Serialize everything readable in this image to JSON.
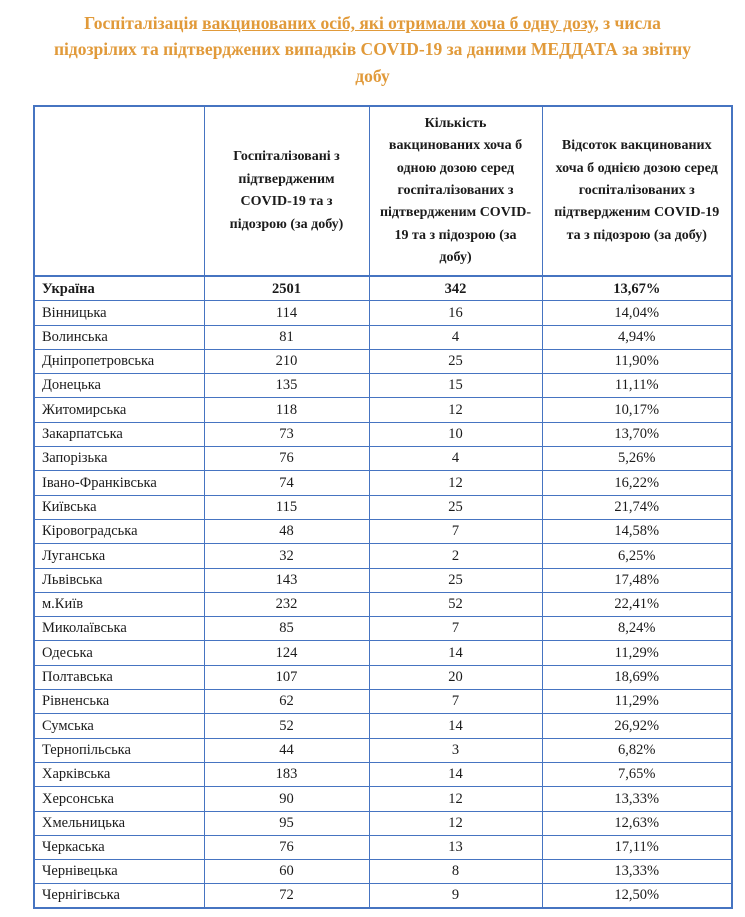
{
  "colors": {
    "title": "#E19A3A",
    "border": "#4674C1",
    "text": "#1b1b1b"
  },
  "title": {
    "prefix": "Госпіталізація ",
    "underlined": "вакцинованих осіб, які отримали хоча б одну дозу,",
    "suffix": " з числа підозрілих та підтверджених випадків COVID-19 за даними МЕДДАТА за звітну добу"
  },
  "table": {
    "headers": [
      "",
      "Госпіталізовані з підтвердженим COVID-19 та з підозрою (за добу)",
      "Кількість вакцинованих хоча б одною дозою серед госпіталізованих з підтвердженим COVID-19 та з підозрою (за добу)",
      "Відсоток вакцинованих хоча б однією дозою серед госпіталізованих з підтвердженим COVID-19 та з підозрою (за добу)"
    ],
    "rows": [
      {
        "region": "Україна",
        "hospitalized": "2501",
        "vaccinated": "342",
        "percent": "13,67%",
        "bold": true
      },
      {
        "region": "Вінницька",
        "hospitalized": "114",
        "vaccinated": "16",
        "percent": "14,04%",
        "bold": false
      },
      {
        "region": "Волинська",
        "hospitalized": "81",
        "vaccinated": "4",
        "percent": "4,94%",
        "bold": false
      },
      {
        "region": "Дніпропетровська",
        "hospitalized": "210",
        "vaccinated": "25",
        "percent": "11,90%",
        "bold": false
      },
      {
        "region": "Донецька",
        "hospitalized": "135",
        "vaccinated": "15",
        "percent": "11,11%",
        "bold": false
      },
      {
        "region": "Житомирська",
        "hospitalized": "118",
        "vaccinated": "12",
        "percent": "10,17%",
        "bold": false
      },
      {
        "region": "Закарпатська",
        "hospitalized": "73",
        "vaccinated": "10",
        "percent": "13,70%",
        "bold": false
      },
      {
        "region": "Запорізька",
        "hospitalized": "76",
        "vaccinated": "4",
        "percent": "5,26%",
        "bold": false
      },
      {
        "region": "Івано-Франківська",
        "hospitalized": "74",
        "vaccinated": "12",
        "percent": "16,22%",
        "bold": false
      },
      {
        "region": "Київська",
        "hospitalized": "115",
        "vaccinated": "25",
        "percent": "21,74%",
        "bold": false
      },
      {
        "region": "Кіровоградська",
        "hospitalized": "48",
        "vaccinated": "7",
        "percent": "14,58%",
        "bold": false
      },
      {
        "region": "Луганська",
        "hospitalized": "32",
        "vaccinated": "2",
        "percent": "6,25%",
        "bold": false
      },
      {
        "region": "Львівська",
        "hospitalized": "143",
        "vaccinated": "25",
        "percent": "17,48%",
        "bold": false
      },
      {
        "region": "м.Київ",
        "hospitalized": "232",
        "vaccinated": "52",
        "percent": "22,41%",
        "bold": false
      },
      {
        "region": "Миколаївська",
        "hospitalized": "85",
        "vaccinated": "7",
        "percent": "8,24%",
        "bold": false
      },
      {
        "region": "Одеська",
        "hospitalized": "124",
        "vaccinated": "14",
        "percent": "11,29%",
        "bold": false
      },
      {
        "region": "Полтавська",
        "hospitalized": "107",
        "vaccinated": "20",
        "percent": "18,69%",
        "bold": false
      },
      {
        "region": "Рівненська",
        "hospitalized": "62",
        "vaccinated": "7",
        "percent": "11,29%",
        "bold": false
      },
      {
        "region": "Сумська",
        "hospitalized": "52",
        "vaccinated": "14",
        "percent": "26,92%",
        "bold": false
      },
      {
        "region": "Тернопільська",
        "hospitalized": "44",
        "vaccinated": "3",
        "percent": "6,82%",
        "bold": false
      },
      {
        "region": "Харківська",
        "hospitalized": "183",
        "vaccinated": "14",
        "percent": "7,65%",
        "bold": false
      },
      {
        "region": "Херсонська",
        "hospitalized": "90",
        "vaccinated": "12",
        "percent": "13,33%",
        "bold": false
      },
      {
        "region": "Хмельницька",
        "hospitalized": "95",
        "vaccinated": "12",
        "percent": "12,63%",
        "bold": false
      },
      {
        "region": "Черкаська",
        "hospitalized": "76",
        "vaccinated": "13",
        "percent": "17,11%",
        "bold": false
      },
      {
        "region": "Чернівецька",
        "hospitalized": "60",
        "vaccinated": "8",
        "percent": "13,33%",
        "bold": false
      },
      {
        "region": "Чернігівська",
        "hospitalized": "72",
        "vaccinated": "9",
        "percent": "12,50%",
        "bold": false
      }
    ]
  }
}
